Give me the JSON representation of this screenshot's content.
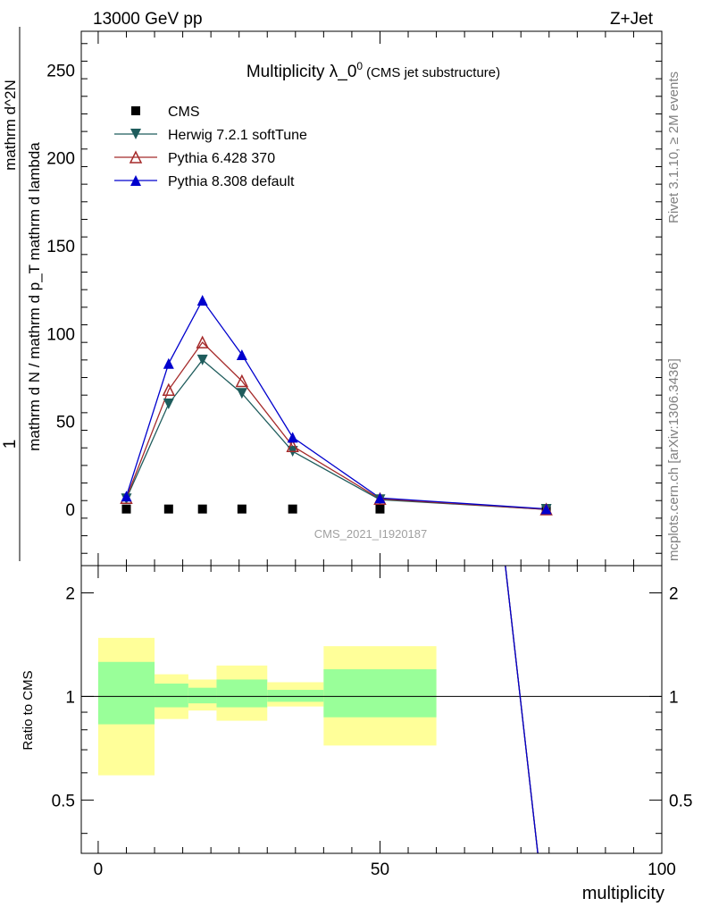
{
  "header": {
    "energy": "13000 GeV pp",
    "process": "Z+Jet"
  },
  "side_labels": {
    "rivet": "Rivet 3.1.10, ≥ 2M events",
    "mcplots": "mcplots.cern.ch [arXiv:1306.3436]"
  },
  "watermark": "CMS_2021_I1920187",
  "chart_data": [
    {
      "type": "scatter",
      "title_main": "Multiplicity λ_0",
      "title_sup": "0",
      "title_sub": "(CMS jet substructure)",
      "ylabel_num": "1",
      "ylabel_den": "mathrm d N / mathrm d p_T mathrm d lambda",
      "ylabel_numerator_text": "mathrm d^2N",
      "ylabel_denominator_text": "mathrm d p_T mathrm d lambda",
      "yticks": [
        "0",
        "50",
        "100",
        "150",
        "200",
        "250"
      ],
      "ylim": [
        -32,
        272
      ],
      "xlim": [
        -3,
        100
      ],
      "grid": false,
      "legend_position": "top-left",
      "series": [
        {
          "name": "CMS",
          "color": "#000000",
          "marker": "square",
          "x": [
            5,
            12.5,
            18.5,
            25.5,
            34.5,
            50,
            79.5
          ],
          "y": [
            0.2,
            0.2,
            0.2,
            0.2,
            0.2,
            0.2,
            0.2
          ]
        },
        {
          "name": "Herwig 7.2.1 softTune",
          "color": "#1e5c5c",
          "marker": "triangle-down",
          "x": [
            5,
            12.5,
            18.5,
            25.5,
            34.5,
            50,
            79.5
          ],
          "y": [
            6,
            60,
            85,
            66,
            33,
            5.5,
            0
          ]
        },
        {
          "name": "Pythia 6.428 370",
          "color": "#a52a2a",
          "marker": "triangle-open",
          "x": [
            5,
            12.5,
            18.5,
            25.5,
            34.5,
            50,
            79.5
          ],
          "y": [
            6.5,
            68,
            95,
            73,
            36,
            6,
            0
          ]
        },
        {
          "name": "Pythia 8.308 default",
          "color": "#0000cd",
          "marker": "triangle-up",
          "x": [
            5,
            12.5,
            18.5,
            25.5,
            34.5,
            50,
            79.5
          ],
          "y": [
            7.5,
            83,
            119,
            88,
            41,
            6.5,
            0.3
          ]
        }
      ]
    },
    {
      "type": "area",
      "ylabel": "Ratio to CMS",
      "xlabel": "multiplicity",
      "xticks": [
        "0",
        "50",
        "100"
      ],
      "yticks": [
        "0.5",
        "1",
        "2"
      ],
      "ylim": [
        0.35,
        2.4
      ],
      "log_y": true,
      "xlim": [
        -3,
        100
      ],
      "reference_line": 1,
      "bands": [
        {
          "xlo": 0,
          "xhi": 10,
          "yellow": [
            0.59,
            1.48
          ],
          "green": [
            0.83,
            1.26
          ]
        },
        {
          "xlo": 10,
          "xhi": 16,
          "yellow": [
            0.86,
            1.16
          ],
          "green": [
            0.93,
            1.09
          ]
        },
        {
          "xlo": 16,
          "xhi": 21,
          "yellow": [
            0.91,
            1.12
          ],
          "green": [
            0.955,
            1.06
          ]
        },
        {
          "xlo": 21,
          "xhi": 30,
          "yellow": [
            0.85,
            1.23
          ],
          "green": [
            0.93,
            1.12
          ]
        },
        {
          "xlo": 30,
          "xhi": 40,
          "yellow": [
            0.935,
            1.1
          ],
          "green": [
            0.965,
            1.045
          ]
        },
        {
          "xlo": 40,
          "xhi": 60,
          "yellow": [
            0.72,
            1.4
          ],
          "green": [
            0.87,
            1.2
          ]
        }
      ],
      "ratio_lines": [
        {
          "name": "Herwig 7.2.1 softTune",
          "color": "#1e5c5c",
          "x": [
            72,
            78
          ],
          "y": [
            2.6,
            0.35
          ]
        },
        {
          "name": "Pythia 6.428 370",
          "color": "#a52a2a",
          "x": [
            72,
            78
          ],
          "y": [
            2.6,
            0.35
          ]
        },
        {
          "name": "Pythia 8.308 default",
          "color": "#0000cd",
          "x": [
            72,
            78
          ],
          "y": [
            2.6,
            0.35
          ]
        }
      ]
    }
  ]
}
